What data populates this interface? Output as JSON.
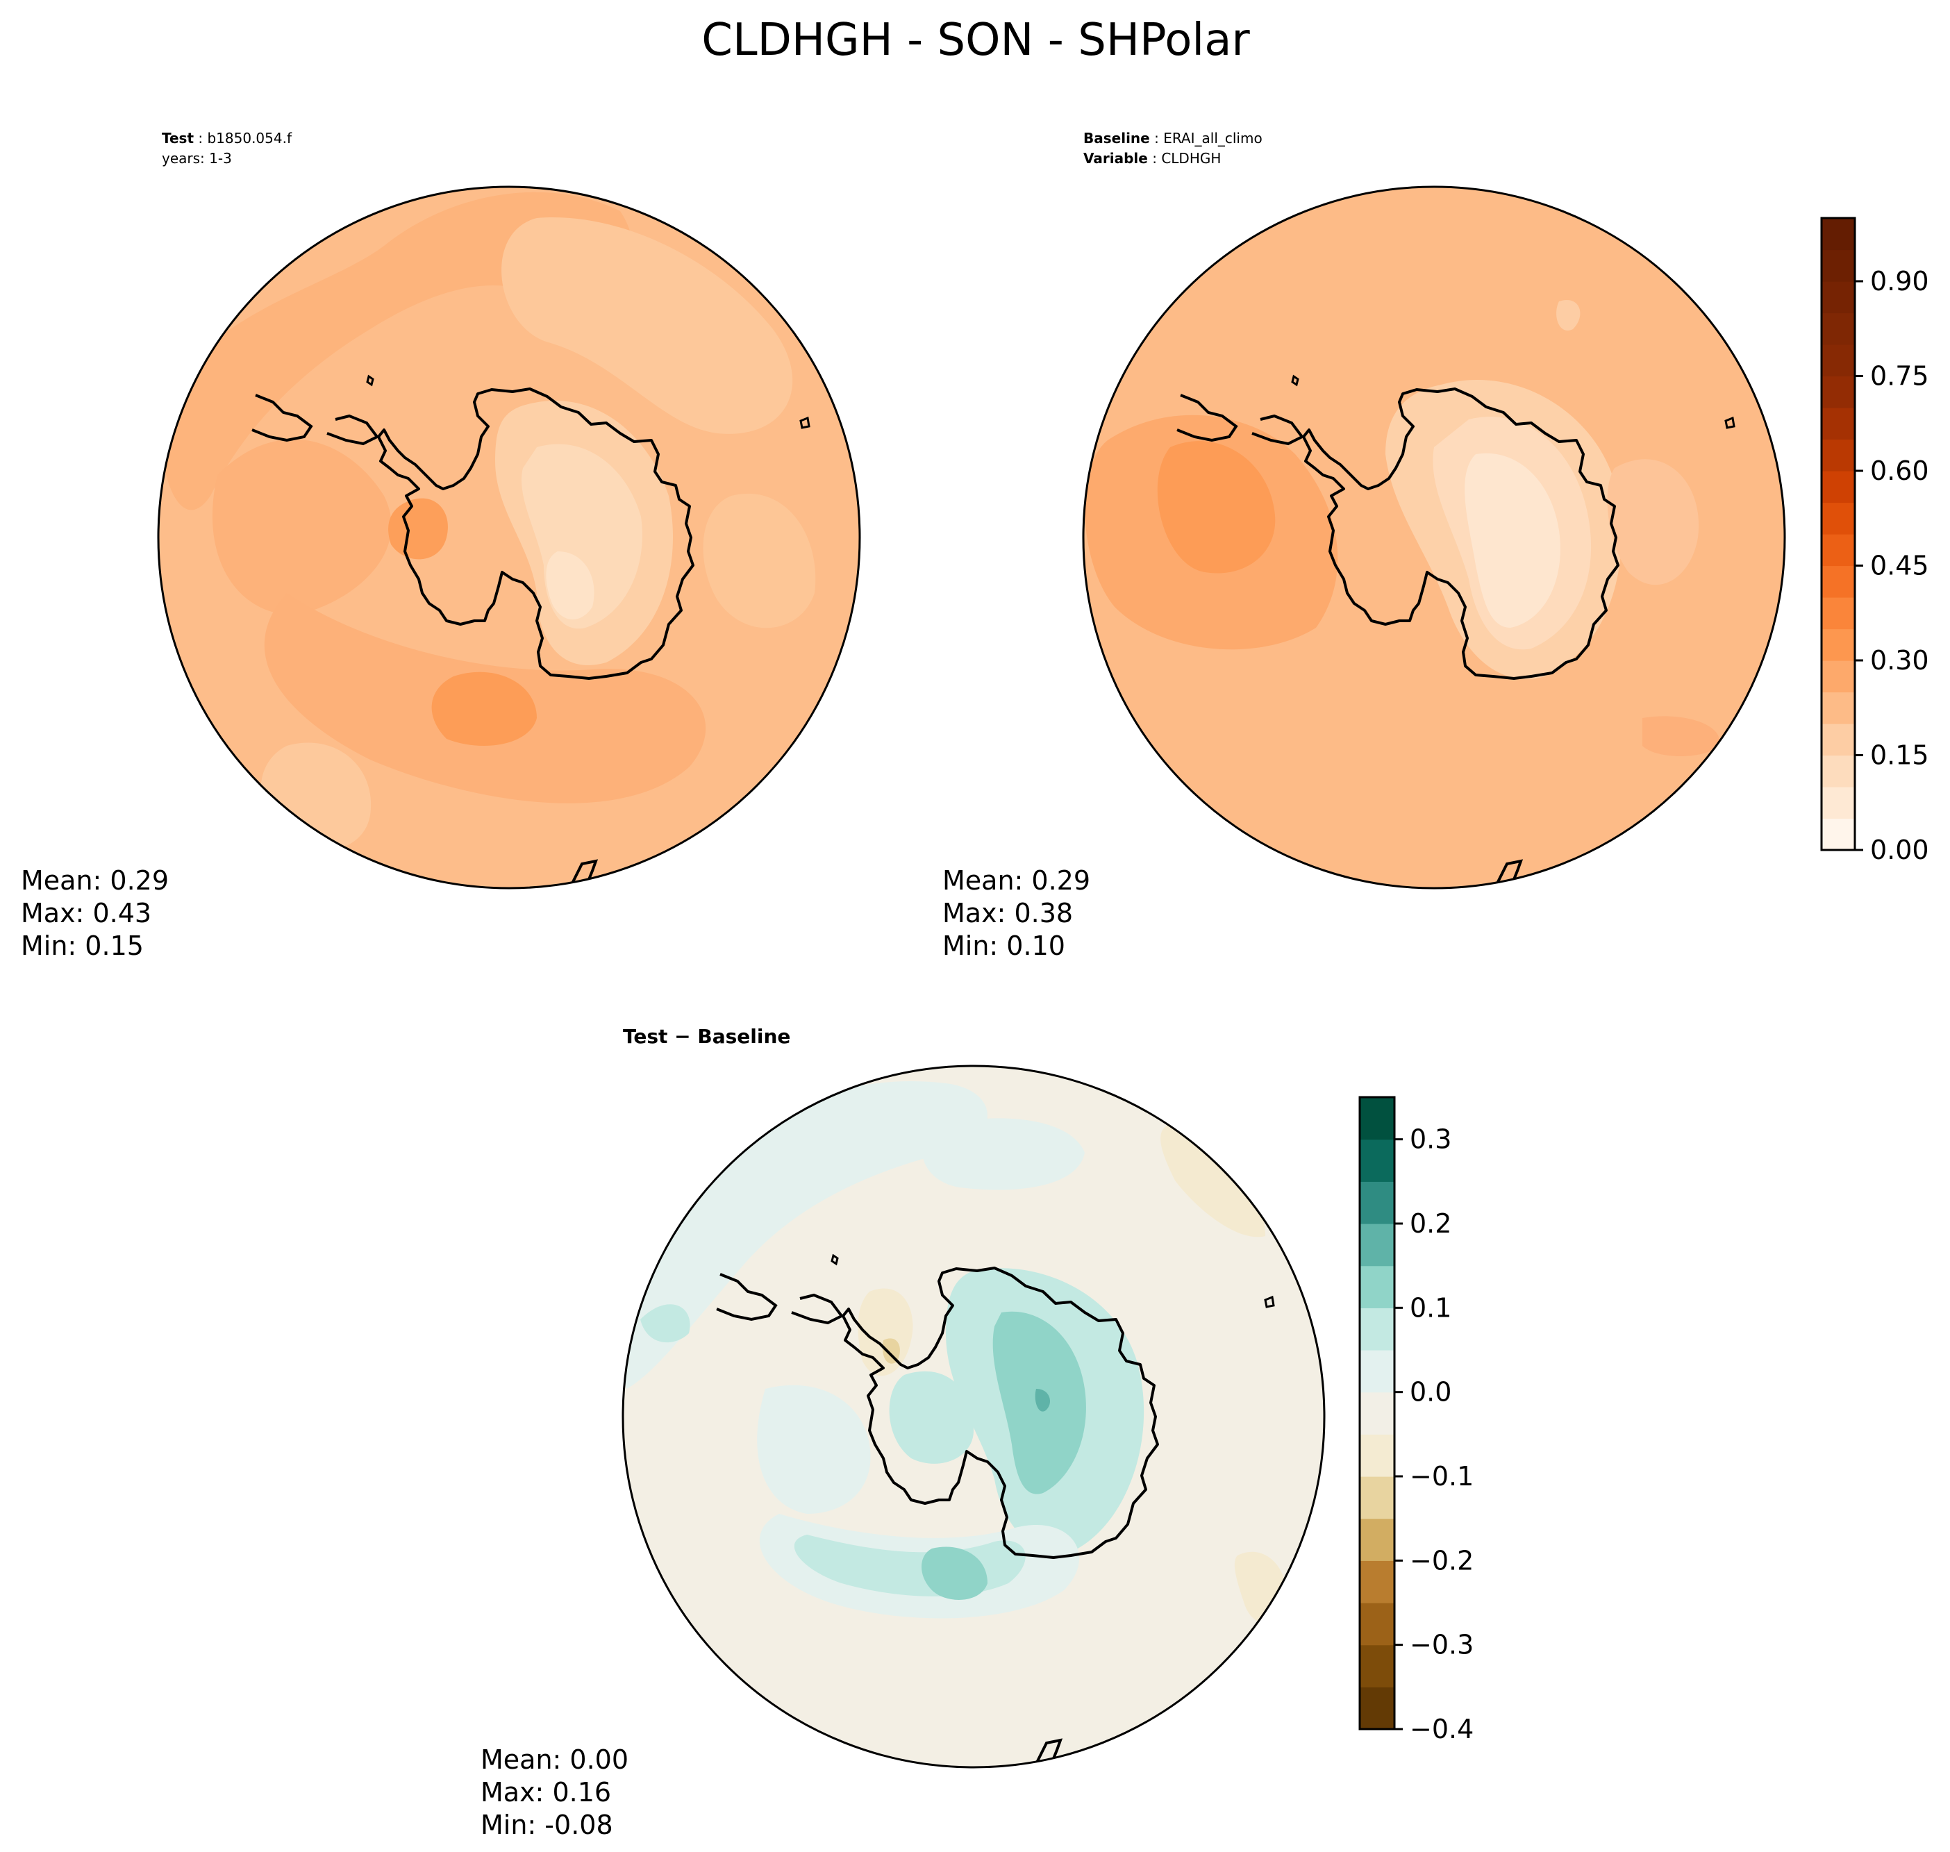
{
  "figure": {
    "title": "CLDHGH - SON - SHPolar"
  },
  "panels": {
    "test": {
      "label_bold": "Test",
      "label_value": "b1850.054.f",
      "years_line": "years: 1-3",
      "stats": {
        "mean": "Mean:  0.29",
        "max": "Max:  0.43",
        "min": "Min:  0.15"
      }
    },
    "baseline": {
      "label_bold": "Baseline",
      "label_value": "ERAI_all_climo",
      "variable_bold": "Variable",
      "variable_value": "CLDHGH",
      "stats": {
        "mean": "Mean:  0.29",
        "max": "Max:  0.38",
        "min": "Min:  0.10"
      }
    },
    "diff": {
      "title_bold": "Test − Baseline",
      "stats": {
        "mean": "Mean:  0.00",
        "max": "Max:  0.16",
        "min": "Min: -0.08"
      }
    }
  },
  "chart_data": [
    {
      "type": "heatmap",
      "projection": "south-polar-stereographic",
      "panel": "test",
      "field": "CLDHGH",
      "mean": 0.29,
      "max": 0.43,
      "min": 0.15,
      "colormap": "Oranges",
      "clim": [
        0.0,
        1.0
      ]
    },
    {
      "type": "heatmap",
      "projection": "south-polar-stereographic",
      "panel": "baseline",
      "field": "CLDHGH",
      "mean": 0.29,
      "max": 0.38,
      "min": 0.1,
      "colormap": "Oranges",
      "clim": [
        0.0,
        1.0
      ],
      "colorbar": {
        "orientation": "vertical",
        "ticks": [
          0.0,
          0.15,
          0.3,
          0.45,
          0.6,
          0.75,
          0.9
        ],
        "tick_labels": [
          "0.00",
          "0.15",
          "0.30",
          "0.45",
          "0.60",
          "0.75",
          "0.90"
        ],
        "levels": [
          0.0,
          0.05,
          0.1,
          0.15,
          0.2,
          0.25,
          0.3,
          0.35,
          0.4,
          0.45,
          0.5,
          0.55,
          0.6,
          0.65,
          0.7,
          0.75,
          0.8,
          0.85,
          0.9,
          0.95,
          1.0
        ],
        "colors": [
          "#fff5eb",
          "#fee9d4",
          "#fddcbd",
          "#fdcda4",
          "#fdbb87",
          "#fda96b",
          "#fd974f",
          "#fa853a",
          "#f57226",
          "#ec6015",
          "#e05009",
          "#cf4103",
          "#ba3902",
          "#a53103",
          "#932c04",
          "#872904",
          "#7f2704",
          "#762303",
          "#6d2002",
          "#641d02"
        ]
      }
    },
    {
      "type": "heatmap",
      "projection": "south-polar-stereographic",
      "panel": "diff",
      "field": "CLDHGH",
      "mean": 0.0,
      "max": 0.16,
      "min": -0.08,
      "colormap": "BrBG",
      "clim": [
        -0.4,
        0.35
      ],
      "colorbar": {
        "orientation": "vertical",
        "ticks": [
          -0.4,
          -0.3,
          -0.2,
          -0.1,
          0.0,
          0.1,
          0.2,
          0.3
        ],
        "tick_labels": [
          "−0.4",
          "−0.3",
          "−0.2",
          "−0.1",
          "0.0",
          "0.1",
          "0.2",
          "0.3"
        ],
        "levels": [
          -0.4,
          -0.35,
          -0.3,
          -0.25,
          -0.2,
          -0.15,
          -0.1,
          -0.05,
          0.0,
          0.05,
          0.1,
          0.15,
          0.2,
          0.25,
          0.3,
          0.35
        ],
        "colors": [
          "#633a05",
          "#7d4c0a",
          "#9c6218",
          "#b97d2f",
          "#d2ad62",
          "#e8d4a0",
          "#f4ebd2",
          "#f2efe6",
          "#e3f1ef",
          "#c3e9e2",
          "#90d4c8",
          "#5fb3a8",
          "#2f8c82",
          "#0b6a5c",
          "#01513f"
        ]
      }
    }
  ]
}
